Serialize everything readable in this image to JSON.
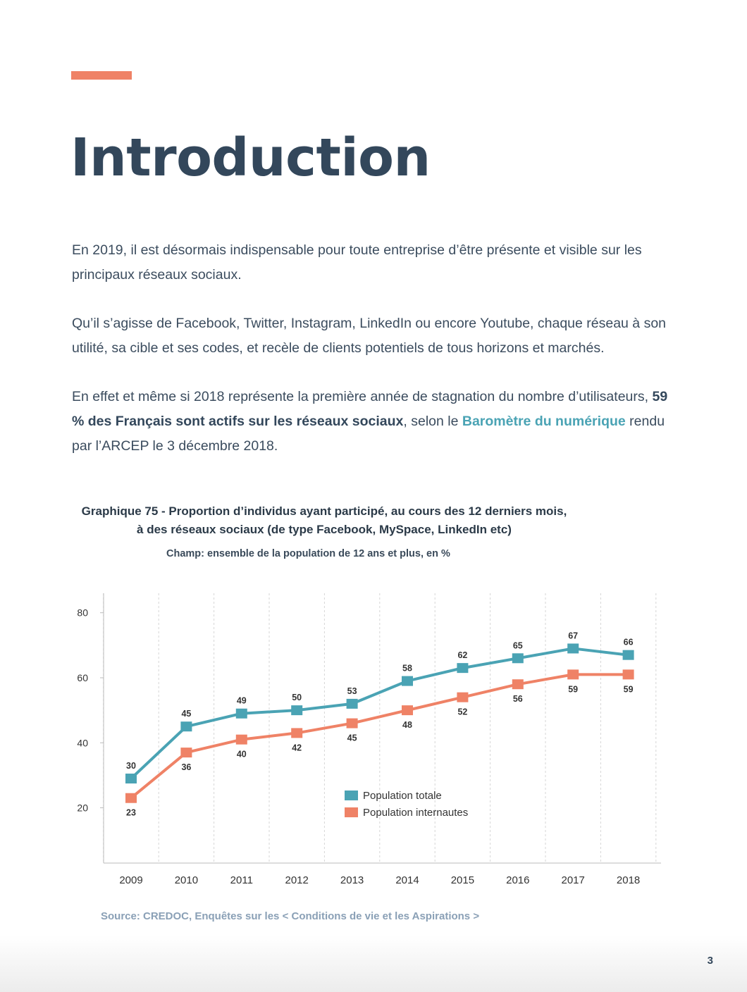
{
  "page": {
    "title": "Introduction",
    "paragraphs": {
      "p1": "En 2019, il est désormais indispensable pour toute entreprise d’être présente et visible sur les principaux réseaux sociaux.",
      "p2": "Qu’il s’agisse de Facebook, Twitter, Instagram, LinkedIn ou encore Youtube, chaque réseau à son utilité, sa cible et ses codes, et recèle de clients potentiels de tous horizons et marchés.",
      "p3_before": "En effet et même si 2018 représente la première année de stagnation du nombre d’utilisateurs, ",
      "p3_bold": "59 % des Français sont actifs sur les réseaux sociaux",
      "p3_middle": ", selon le ",
      "p3_link": "Baromètre du numérique",
      "p3_after": " rendu par l’ARCEP le 3 décembre 2018."
    },
    "source": "Source: CREDOC, Enquêtes sur les < Conditions de vie et les Aspirations >",
    "page_number": "3"
  },
  "colors": {
    "accent": "#ef8266",
    "teal": "#4aa3b4",
    "heading": "#33475b"
  },
  "chart_data": {
    "type": "line",
    "title": "Graphique 75 - Proportion d’individus ayant participé, au cours des 12 derniers mois, à des réseaux sociaux (de type Facebook, MySpace, LinkedIn etc)",
    "subtitle": "Champ: ensemble de la population de 12 ans et plus, en %",
    "categories": [
      "2009",
      "2010",
      "2011",
      "2012",
      "2013",
      "2014",
      "2015",
      "2016",
      "2017",
      "2018"
    ],
    "series": [
      {
        "name": "Population totale",
        "color": "#4aa3b4",
        "values": [
          30,
          45,
          49,
          50,
          53,
          58,
          62,
          65,
          67,
          66
        ],
        "plotted": [
          29,
          45,
          49,
          50,
          52,
          59,
          63,
          66,
          69,
          67
        ]
      },
      {
        "name": "Population internautes",
        "color": "#ef8266",
        "values": [
          23,
          36,
          40,
          42,
          45,
          48,
          52,
          56,
          59,
          59
        ],
        "plotted": [
          23,
          37,
          41,
          43,
          46,
          50,
          54,
          58,
          61,
          61
        ]
      }
    ],
    "yticks": [
      20,
      40,
      60,
      80
    ],
    "ylim": [
      3,
      86
    ],
    "grid": "vertical-dashed",
    "legend": "center-right"
  }
}
